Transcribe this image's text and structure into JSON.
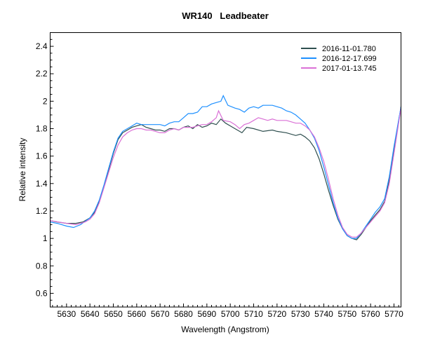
{
  "chart_data": {
    "type": "line",
    "title": "WR140   Leadbeater",
    "xlabel": "Wavelength (Angstrom)",
    "ylabel": "Relative intensity",
    "xlim": [
      5623,
      5773
    ],
    "ylim": [
      0.5,
      2.5
    ],
    "xticks": [
      5630,
      5640,
      5650,
      5660,
      5670,
      5680,
      5690,
      5700,
      5710,
      5720,
      5730,
      5740,
      5750,
      5760,
      5770
    ],
    "yticks": [
      0.6,
      0.8,
      1,
      1.2,
      1.4,
      1.6,
      1.8,
      2,
      2.2,
      2.4
    ],
    "ytick_labels": [
      "0.6",
      "0.8",
      "1",
      "1.2",
      "1.4",
      "1.6",
      "1.8",
      "2",
      "2.2",
      "2.4"
    ],
    "grid": false,
    "legend_position": "top-right",
    "series": [
      {
        "name": "2016-11-01.780",
        "color": "#2F4F4F",
        "x": [
          5623,
          5626,
          5630,
          5634,
          5637,
          5640,
          5642,
          5644,
          5646,
          5648,
          5650,
          5652,
          5654,
          5656,
          5658,
          5660,
          5662,
          5664,
          5666,
          5668,
          5670,
          5672,
          5674,
          5676,
          5678,
          5680,
          5682,
          5684,
          5686,
          5688,
          5690,
          5692,
          5694,
          5696,
          5698,
          5700,
          5702,
          5704,
          5705,
          5707,
          5710,
          5714,
          5718,
          5720,
          5724,
          5728,
          5730,
          5732,
          5734,
          5736,
          5738,
          5740,
          5742,
          5744,
          5746,
          5748,
          5750,
          5752,
          5754,
          5756,
          5758,
          5760,
          5762,
          5764,
          5766,
          5768,
          5770,
          5773
        ],
        "y": [
          1.13,
          1.12,
          1.11,
          1.11,
          1.12,
          1.15,
          1.19,
          1.27,
          1.38,
          1.5,
          1.62,
          1.72,
          1.77,
          1.79,
          1.81,
          1.82,
          1.83,
          1.81,
          1.8,
          1.79,
          1.79,
          1.78,
          1.8,
          1.8,
          1.79,
          1.81,
          1.82,
          1.8,
          1.83,
          1.81,
          1.82,
          1.84,
          1.83,
          1.87,
          1.84,
          1.82,
          1.8,
          1.78,
          1.77,
          1.81,
          1.8,
          1.78,
          1.79,
          1.78,
          1.77,
          1.75,
          1.76,
          1.74,
          1.71,
          1.66,
          1.58,
          1.47,
          1.35,
          1.24,
          1.14,
          1.07,
          1.02,
          1.0,
          0.99,
          1.03,
          1.08,
          1.13,
          1.17,
          1.21,
          1.27,
          1.43,
          1.65,
          1.96
        ]
      },
      {
        "name": "2016-12-17.699",
        "color": "#1E90FF",
        "x": [
          5623,
          5626,
          5630,
          5633,
          5636,
          5640,
          5642,
          5644,
          5646,
          5648,
          5650,
          5652,
          5654,
          5656,
          5658,
          5660,
          5662,
          5664,
          5666,
          5668,
          5670,
          5672,
          5674,
          5676,
          5678,
          5680,
          5682,
          5684,
          5686,
          5688,
          5690,
          5692,
          5694,
          5696,
          5697,
          5699,
          5702,
          5704,
          5706,
          5708,
          5710,
          5712,
          5714,
          5716,
          5718,
          5720,
          5722,
          5724,
          5726,
          5728,
          5730,
          5732,
          5734,
          5736,
          5738,
          5740,
          5742,
          5744,
          5746,
          5748,
          5750,
          5752,
          5754,
          5756,
          5758,
          5760,
          5762,
          5764,
          5766,
          5768,
          5770,
          5773
        ],
        "y": [
          1.12,
          1.11,
          1.09,
          1.08,
          1.1,
          1.15,
          1.2,
          1.28,
          1.39,
          1.51,
          1.63,
          1.73,
          1.78,
          1.8,
          1.82,
          1.84,
          1.83,
          1.83,
          1.83,
          1.83,
          1.83,
          1.82,
          1.84,
          1.85,
          1.85,
          1.88,
          1.91,
          1.91,
          1.92,
          1.96,
          1.96,
          1.98,
          1.99,
          2.0,
          2.04,
          1.97,
          1.95,
          1.94,
          1.92,
          1.95,
          1.96,
          1.95,
          1.97,
          1.97,
          1.97,
          1.96,
          1.95,
          1.93,
          1.92,
          1.9,
          1.87,
          1.84,
          1.79,
          1.73,
          1.64,
          1.52,
          1.39,
          1.26,
          1.15,
          1.07,
          1.02,
          1.0,
          1.0,
          1.04,
          1.09,
          1.14,
          1.19,
          1.23,
          1.29,
          1.45,
          1.67,
          1.96
        ]
      },
      {
        "name": "2017-01-13.745",
        "color": "#DA70D6",
        "x": [
          5623,
          5630,
          5634,
          5638,
          5640,
          5642,
          5644,
          5646,
          5648,
          5650,
          5652,
          5654,
          5656,
          5658,
          5660,
          5662,
          5664,
          5666,
          5668,
          5670,
          5672,
          5674,
          5676,
          5678,
          5680,
          5682,
          5684,
          5686,
          5688,
          5690,
          5692,
          5694,
          5695,
          5697,
          5700,
          5702,
          5704,
          5706,
          5708,
          5710,
          5712,
          5714,
          5716,
          5718,
          5720,
          5722,
          5724,
          5726,
          5728,
          5730,
          5732,
          5734,
          5736,
          5738,
          5740,
          5742,
          5744,
          5746,
          5748,
          5750,
          5752,
          5754,
          5756,
          5758,
          5760,
          5762,
          5764,
          5766,
          5768,
          5770,
          5773
        ],
        "y": [
          1.13,
          1.11,
          1.1,
          1.12,
          1.14,
          1.18,
          1.26,
          1.37,
          1.48,
          1.59,
          1.68,
          1.74,
          1.77,
          1.79,
          1.8,
          1.8,
          1.79,
          1.79,
          1.78,
          1.77,
          1.77,
          1.79,
          1.8,
          1.79,
          1.81,
          1.81,
          1.81,
          1.82,
          1.83,
          1.83,
          1.85,
          1.88,
          1.93,
          1.86,
          1.85,
          1.83,
          1.8,
          1.83,
          1.84,
          1.86,
          1.88,
          1.87,
          1.86,
          1.87,
          1.86,
          1.86,
          1.86,
          1.85,
          1.84,
          1.84,
          1.82,
          1.79,
          1.74,
          1.66,
          1.56,
          1.43,
          1.29,
          1.17,
          1.08,
          1.03,
          1.01,
          1.01,
          1.04,
          1.08,
          1.12,
          1.16,
          1.2,
          1.26,
          1.4,
          1.62,
          1.95
        ]
      }
    ]
  }
}
